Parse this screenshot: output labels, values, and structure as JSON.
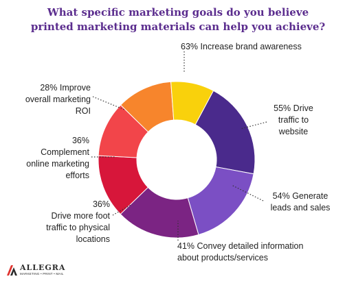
{
  "chart_data": {
    "type": "donut",
    "title": [
      "What specific marketing goals do you believe",
      "printed marketing materials can help you achieve?"
    ],
    "slices": [
      {
        "percent": "63%",
        "value": 63,
        "text": [
          "Increase brand awareness"
        ],
        "color": "#4a2a8c"
      },
      {
        "percent": "55%",
        "value": 55,
        "text": [
          "Drive",
          "traffic to",
          "website"
        ],
        "color": "#7b4fc4"
      },
      {
        "percent": "54%",
        "value": 54,
        "text": [
          "Generate",
          "leads and sales"
        ],
        "color": "#7b2483"
      },
      {
        "percent": "41%",
        "value": 41,
        "text": [
          "Convey detailed information",
          "about products/services"
        ],
        "color": "#d7163a"
      },
      {
        "percent": "36%",
        "value": 36,
        "text": [
          "Drive more foot",
          "traffic to physical",
          "locations"
        ],
        "color": "#f2454a"
      },
      {
        "percent": "36%",
        "value": 36,
        "text": [
          "Complement",
          "online marketing",
          "efforts"
        ],
        "color": "#f7852c"
      },
      {
        "percent": "28%",
        "value": 28,
        "text": [
          "Improve",
          "overall marketing",
          "ROI"
        ],
        "color": "#f9d10c"
      }
    ]
  },
  "logo": {
    "name": "ALLEGRA",
    "tagline": "MARKETING • PRINT • MAIL",
    "colors": {
      "mark_red": "#e0342f",
      "mark_dark": "#2b2b2b"
    }
  }
}
